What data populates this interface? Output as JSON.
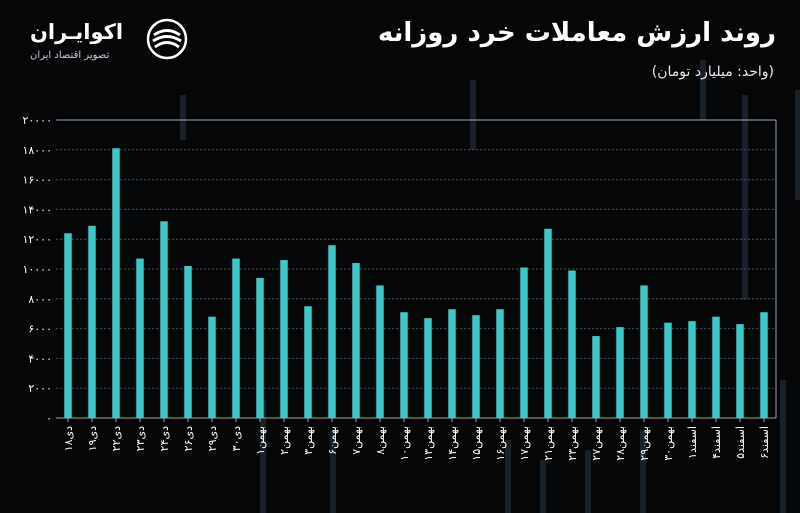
{
  "header": {
    "title": "روند ارزش معاملات خرد روزانه",
    "subtitle": "(واحد: میلیارد تومان)"
  },
  "brand": {
    "name": "اکوایـران",
    "tagline": "تصویر اقتصاد ایران"
  },
  "colors": {
    "bar": "#3cc8c4",
    "background": "#050608",
    "grid": "#4a4f57",
    "text": "#ffffff"
  },
  "chart_data": {
    "type": "bar",
    "categories": [
      "۱۸دی",
      "۱۹دی",
      "۲۲دی",
      "۲۳دی",
      "۲۴دی",
      "۲۶دی",
      "۲۹دی",
      "۳۰دی",
      "۱بهمن",
      "۲بهمن",
      "۳بهمن",
      "۶بهمن",
      "۷بهمن",
      "۸بهمن",
      "۱۰بهمن",
      "۱۳بهمن",
      "۱۴بهمن",
      "۱۵بهمن",
      "۱۶بهمن",
      "۱۷بهمن",
      "۲۱بهمن",
      "۲۳بهمن",
      "۲۷بهمن",
      "۲۸بهمن",
      "۲۹بهمن",
      "۳۰بهمن",
      "۱اسفند",
      "۴اسفند",
      "۵اسفند",
      "۶اسفند"
    ],
    "values": [
      12400,
      12900,
      18100,
      10700,
      13200,
      10200,
      6800,
      10700,
      9400,
      10600,
      7500,
      11600,
      10400,
      8900,
      7100,
      6700,
      7300,
      6900,
      7300,
      10100,
      12700,
      9900,
      5500,
      6100,
      8900,
      6400,
      6500,
      6800,
      6300,
      7100
    ],
    "yticks": [
      "۰",
      "۲۰۰۰",
      "۴۰۰۰",
      "۶۰۰۰",
      "۸۰۰۰",
      "۱۰۰۰۰",
      "۱۲۰۰۰",
      "۱۴۰۰۰",
      "۱۶۰۰۰",
      "۱۸۰۰۰",
      "۲۰۰۰۰"
    ],
    "ylim": [
      0,
      20000
    ],
    "grid": true,
    "title": "روند ارزش معاملات خرد روزانه",
    "xlabel": "",
    "ylabel": "(واحد: میلیارد تومان)"
  }
}
